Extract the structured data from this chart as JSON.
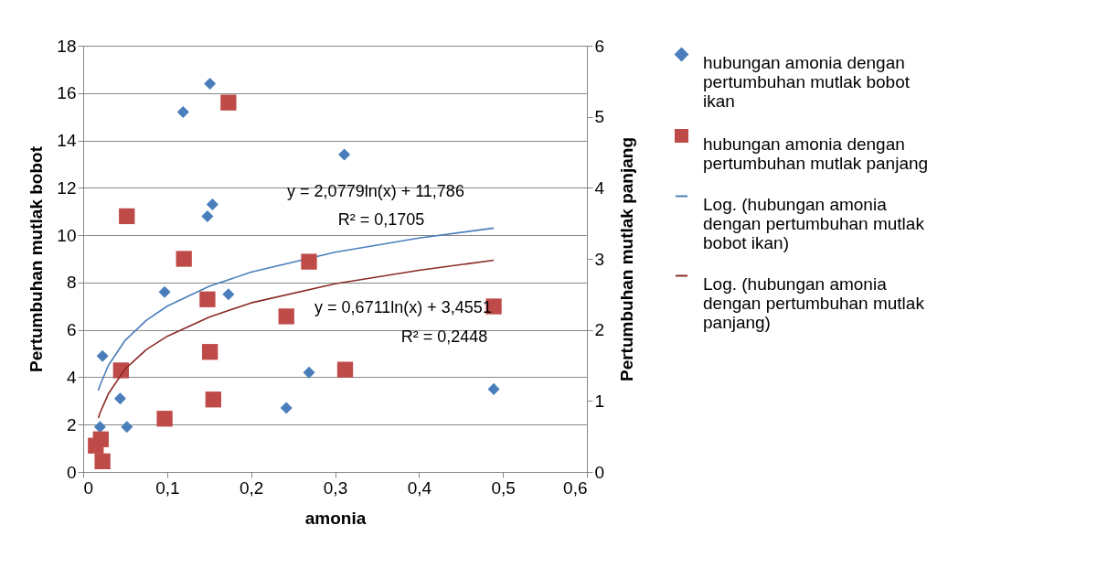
{
  "chart_data": {
    "type": "scatter",
    "xlabel": "amonia",
    "ylabel": "Pertumbuhan mutlak bobot",
    "y2label": "Pertumbuhan mutlak panjang",
    "xlim": [
      0,
      0.6
    ],
    "xticks": [
      0,
      {
        "value": 0.1,
        "label": "0,1"
      },
      {
        "value": 0.2,
        "label": "0,2"
      },
      {
        "value": 0.3,
        "label": "0,3"
      },
      {
        "value": 0.4,
        "label": "0,4"
      },
      {
        "value": 0.5,
        "label": "0,5"
      },
      {
        "value": 0.6,
        "label": "0,6"
      }
    ],
    "ylim": [
      0,
      18
    ],
    "yticks": [
      0,
      2,
      4,
      6,
      8,
      10,
      12,
      14,
      16,
      18
    ],
    "y2lim": [
      0,
      6
    ],
    "y2ticks": [
      0,
      1,
      2,
      3,
      4,
      5,
      6
    ],
    "grid": "y",
    "legend": "right",
    "series": [
      {
        "name": "hubungan amonia dengan pertumbuhan mutlak bobot ikan",
        "marker": "diamond",
        "color": "#4a7ebb",
        "x": [
          0.151,
          0.119,
          0.311,
          0.154,
          0.148,
          0.097,
          0.173,
          0.023,
          0.044,
          0.052,
          0.02,
          0.242,
          0.269,
          0.489
        ],
        "values": [
          16.4,
          15.2,
          13.4,
          11.3,
          10.8,
          7.6,
          7.5,
          4.9,
          3.1,
          1.9,
          1.9,
          2.7,
          4.2,
          3.5
        ]
      },
      {
        "name": "hubungan amonia dengan pertumbuhan mutlak panjang",
        "marker": "square",
        "axis": "y2",
        "color": "#be4b48",
        "x": [
          0.173,
          0.052,
          0.12,
          0.269,
          0.148,
          0.242,
          0.489,
          0.151,
          0.045,
          0.312,
          0.155,
          0.097,
          0.021,
          0.015,
          0.023
        ],
        "values": [
          5.2,
          3.6,
          3.0,
          2.96,
          2.43,
          2.19,
          2.33,
          1.69,
          1.43,
          1.44,
          1.02,
          0.75,
          0.46,
          0.37,
          0.15
        ]
      },
      {
        "name": "Log. (hubungan amonia dengan pertumbuhan mutlak bobot ikan)",
        "type": "line",
        "color": "#4a7ebb",
        "x": [
          0.018,
          0.02,
          0.03,
          0.05,
          0.075,
          0.1,
          0.15,
          0.2,
          0.3,
          0.4,
          0.489
        ],
        "values": [
          3.44,
          3.66,
          4.5,
          5.56,
          6.4,
          7.0,
          7.84,
          8.44,
          9.28,
          9.88,
          10.3
        ]
      },
      {
        "name": "Log. (hubungan amonia dengan pertumbuhan mutlak panjang)",
        "type": "line",
        "axis": "y2",
        "color": "#8b2a27",
        "x": [
          0.018,
          0.02,
          0.03,
          0.05,
          0.075,
          0.1,
          0.15,
          0.2,
          0.3,
          0.4,
          0.489
        ],
        "values": [
          0.76,
          0.83,
          1.1,
          1.45,
          1.72,
          1.91,
          2.18,
          2.38,
          2.65,
          2.84,
          2.98
        ]
      }
    ],
    "annotations": [
      "y = 2,0779ln(x) + 11,786",
      "R² = 0,1705",
      "y = 0,6711ln(x) + 3,4551",
      "R² = 0,2448"
    ]
  }
}
